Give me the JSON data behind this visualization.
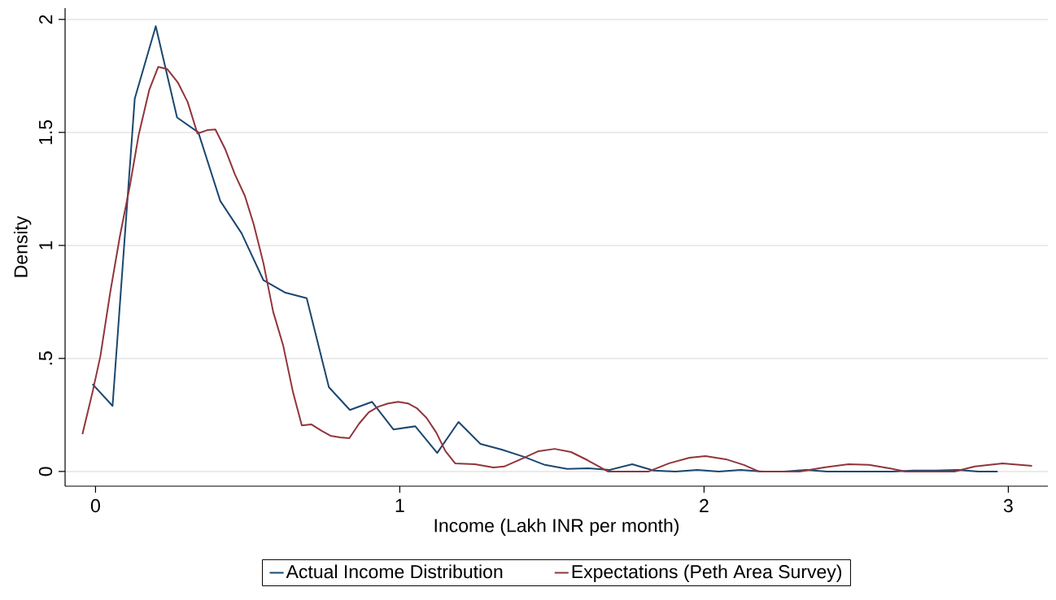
{
  "chart_data": {
    "type": "line",
    "xlabel": "Income (Lakh INR per month)",
    "ylabel": "Density",
    "xlim": [
      -0.1,
      3.13
    ],
    "ylim": [
      -0.065,
      2.05
    ],
    "xticks": [
      0,
      1,
      2,
      3
    ],
    "yticks": [
      0,
      {
        "value": 0.5,
        "label": ".5"
      },
      1,
      1.5,
      2
    ],
    "grid": "y",
    "legend": "bottom",
    "marker": "none",
    "line_style": "solid",
    "series": [
      {
        "name": "Actual Income Distribution",
        "color": "#1a476f",
        "x": [
          -0.01,
          0.056,
          0.129,
          0.198,
          0.268,
          0.338,
          0.41,
          0.48,
          0.552,
          0.622,
          0.694,
          0.767,
          0.836,
          0.909,
          0.979,
          1.051,
          1.123,
          1.193,
          1.265,
          1.335,
          1.408,
          1.477,
          1.55,
          1.62,
          1.69,
          1.764,
          1.834,
          1.906,
          1.978,
          2.048,
          2.12,
          2.193,
          2.263,
          2.335,
          2.405,
          2.477,
          2.547,
          2.619,
          2.689,
          2.761,
          2.834,
          2.903,
          2.965
        ],
        "values": [
          0.387,
          0.29,
          1.65,
          1.97,
          1.566,
          1.5,
          1.197,
          1.054,
          0.846,
          0.792,
          0.767,
          0.373,
          0.272,
          0.308,
          0.186,
          0.2,
          0.082,
          0.219,
          0.122,
          0.097,
          0.065,
          0.029,
          0.011,
          0.014,
          0.007,
          0.032,
          0.004,
          0.0,
          0.007,
          0.0,
          0.007,
          0.0,
          0.0,
          0.007,
          0.0,
          0.0,
          0.0,
          0.0,
          0.004,
          0.004,
          0.007,
          0.0,
          0.0
        ]
      },
      {
        "name": "Expectations (Peth Area Survey)",
        "color": "#90353b",
        "x": [
          -0.043,
          -0.01,
          0.016,
          0.048,
          0.08,
          0.113,
          0.142,
          0.177,
          0.206,
          0.236,
          0.271,
          0.303,
          0.335,
          0.367,
          0.394,
          0.426,
          0.458,
          0.491,
          0.52,
          0.552,
          0.584,
          0.617,
          0.649,
          0.678,
          0.71,
          0.743,
          0.772,
          0.804,
          0.834,
          0.866,
          0.898,
          0.93,
          0.962,
          0.995,
          1.027,
          1.056,
          1.088,
          1.12,
          1.15,
          1.182,
          1.247,
          1.308,
          1.343,
          1.402,
          1.456,
          1.509,
          1.563,
          1.617,
          1.684,
          1.818,
          1.885,
          1.952,
          2.005,
          2.072,
          2.131,
          2.18,
          2.314,
          2.394,
          2.475,
          2.542,
          2.609,
          2.662,
          2.823,
          2.89,
          2.981,
          3.078
        ],
        "values": [
          0.165,
          0.35,
          0.51,
          0.79,
          1.04,
          1.265,
          1.49,
          1.69,
          1.79,
          1.78,
          1.72,
          1.634,
          1.495,
          1.51,
          1.513,
          1.427,
          1.315,
          1.219,
          1.093,
          0.921,
          0.706,
          0.556,
          0.351,
          0.204,
          0.208,
          0.18,
          0.158,
          0.151,
          0.147,
          0.211,
          0.262,
          0.287,
          0.301,
          0.308,
          0.301,
          0.28,
          0.237,
          0.172,
          0.09,
          0.036,
          0.032,
          0.018,
          0.022,
          0.057,
          0.09,
          0.1,
          0.086,
          0.05,
          0.0,
          0.0,
          0.036,
          0.061,
          0.068,
          0.054,
          0.029,
          0.0,
          0.0,
          0.018,
          0.032,
          0.029,
          0.014,
          0.0,
          0.0,
          0.022,
          0.036,
          0.025
        ]
      }
    ]
  }
}
